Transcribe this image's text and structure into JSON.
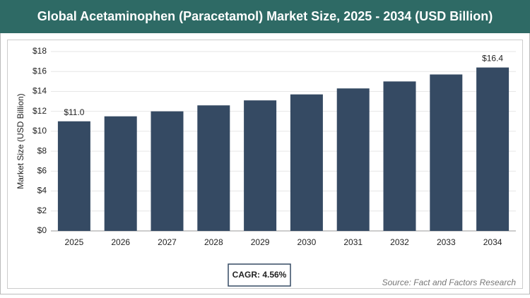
{
  "chart_data": {
    "type": "bar",
    "title": "Global Acetaminophen (Paracetamol) Market Size, 2025 - 2034 (USD Billion)",
    "y_label": "Market Size (USD Billion)",
    "categories": [
      "2025",
      "2026",
      "2027",
      "2028",
      "2029",
      "2030",
      "2031",
      "2032",
      "2033",
      "2034"
    ],
    "values": [
      11.0,
      11.5,
      12.0,
      12.6,
      13.1,
      13.7,
      14.3,
      15.0,
      15.7,
      16.4
    ],
    "value_labels": [
      "$11.0",
      null,
      null,
      null,
      null,
      null,
      null,
      null,
      null,
      "$16.4"
    ],
    "color": "#354a63",
    "ylim": [
      0,
      18
    ],
    "yticks": [
      {
        "value": 0,
        "label": "$0"
      },
      {
        "value": 2,
        "label": "$2"
      },
      {
        "value": 4,
        "label": "$4"
      },
      {
        "value": 6,
        "label": "$6"
      },
      {
        "value": 8,
        "label": "$8"
      },
      {
        "value": 10,
        "label": "$10"
      },
      {
        "value": 12,
        "label": "$12"
      },
      {
        "value": 14,
        "label": "$14"
      },
      {
        "value": 16,
        "label": "$16"
      },
      {
        "value": 18,
        "label": "$18"
      }
    ],
    "grid": true,
    "cagr": "CAGR: 4.56%",
    "source": "Source: Fact and Factors Research"
  }
}
